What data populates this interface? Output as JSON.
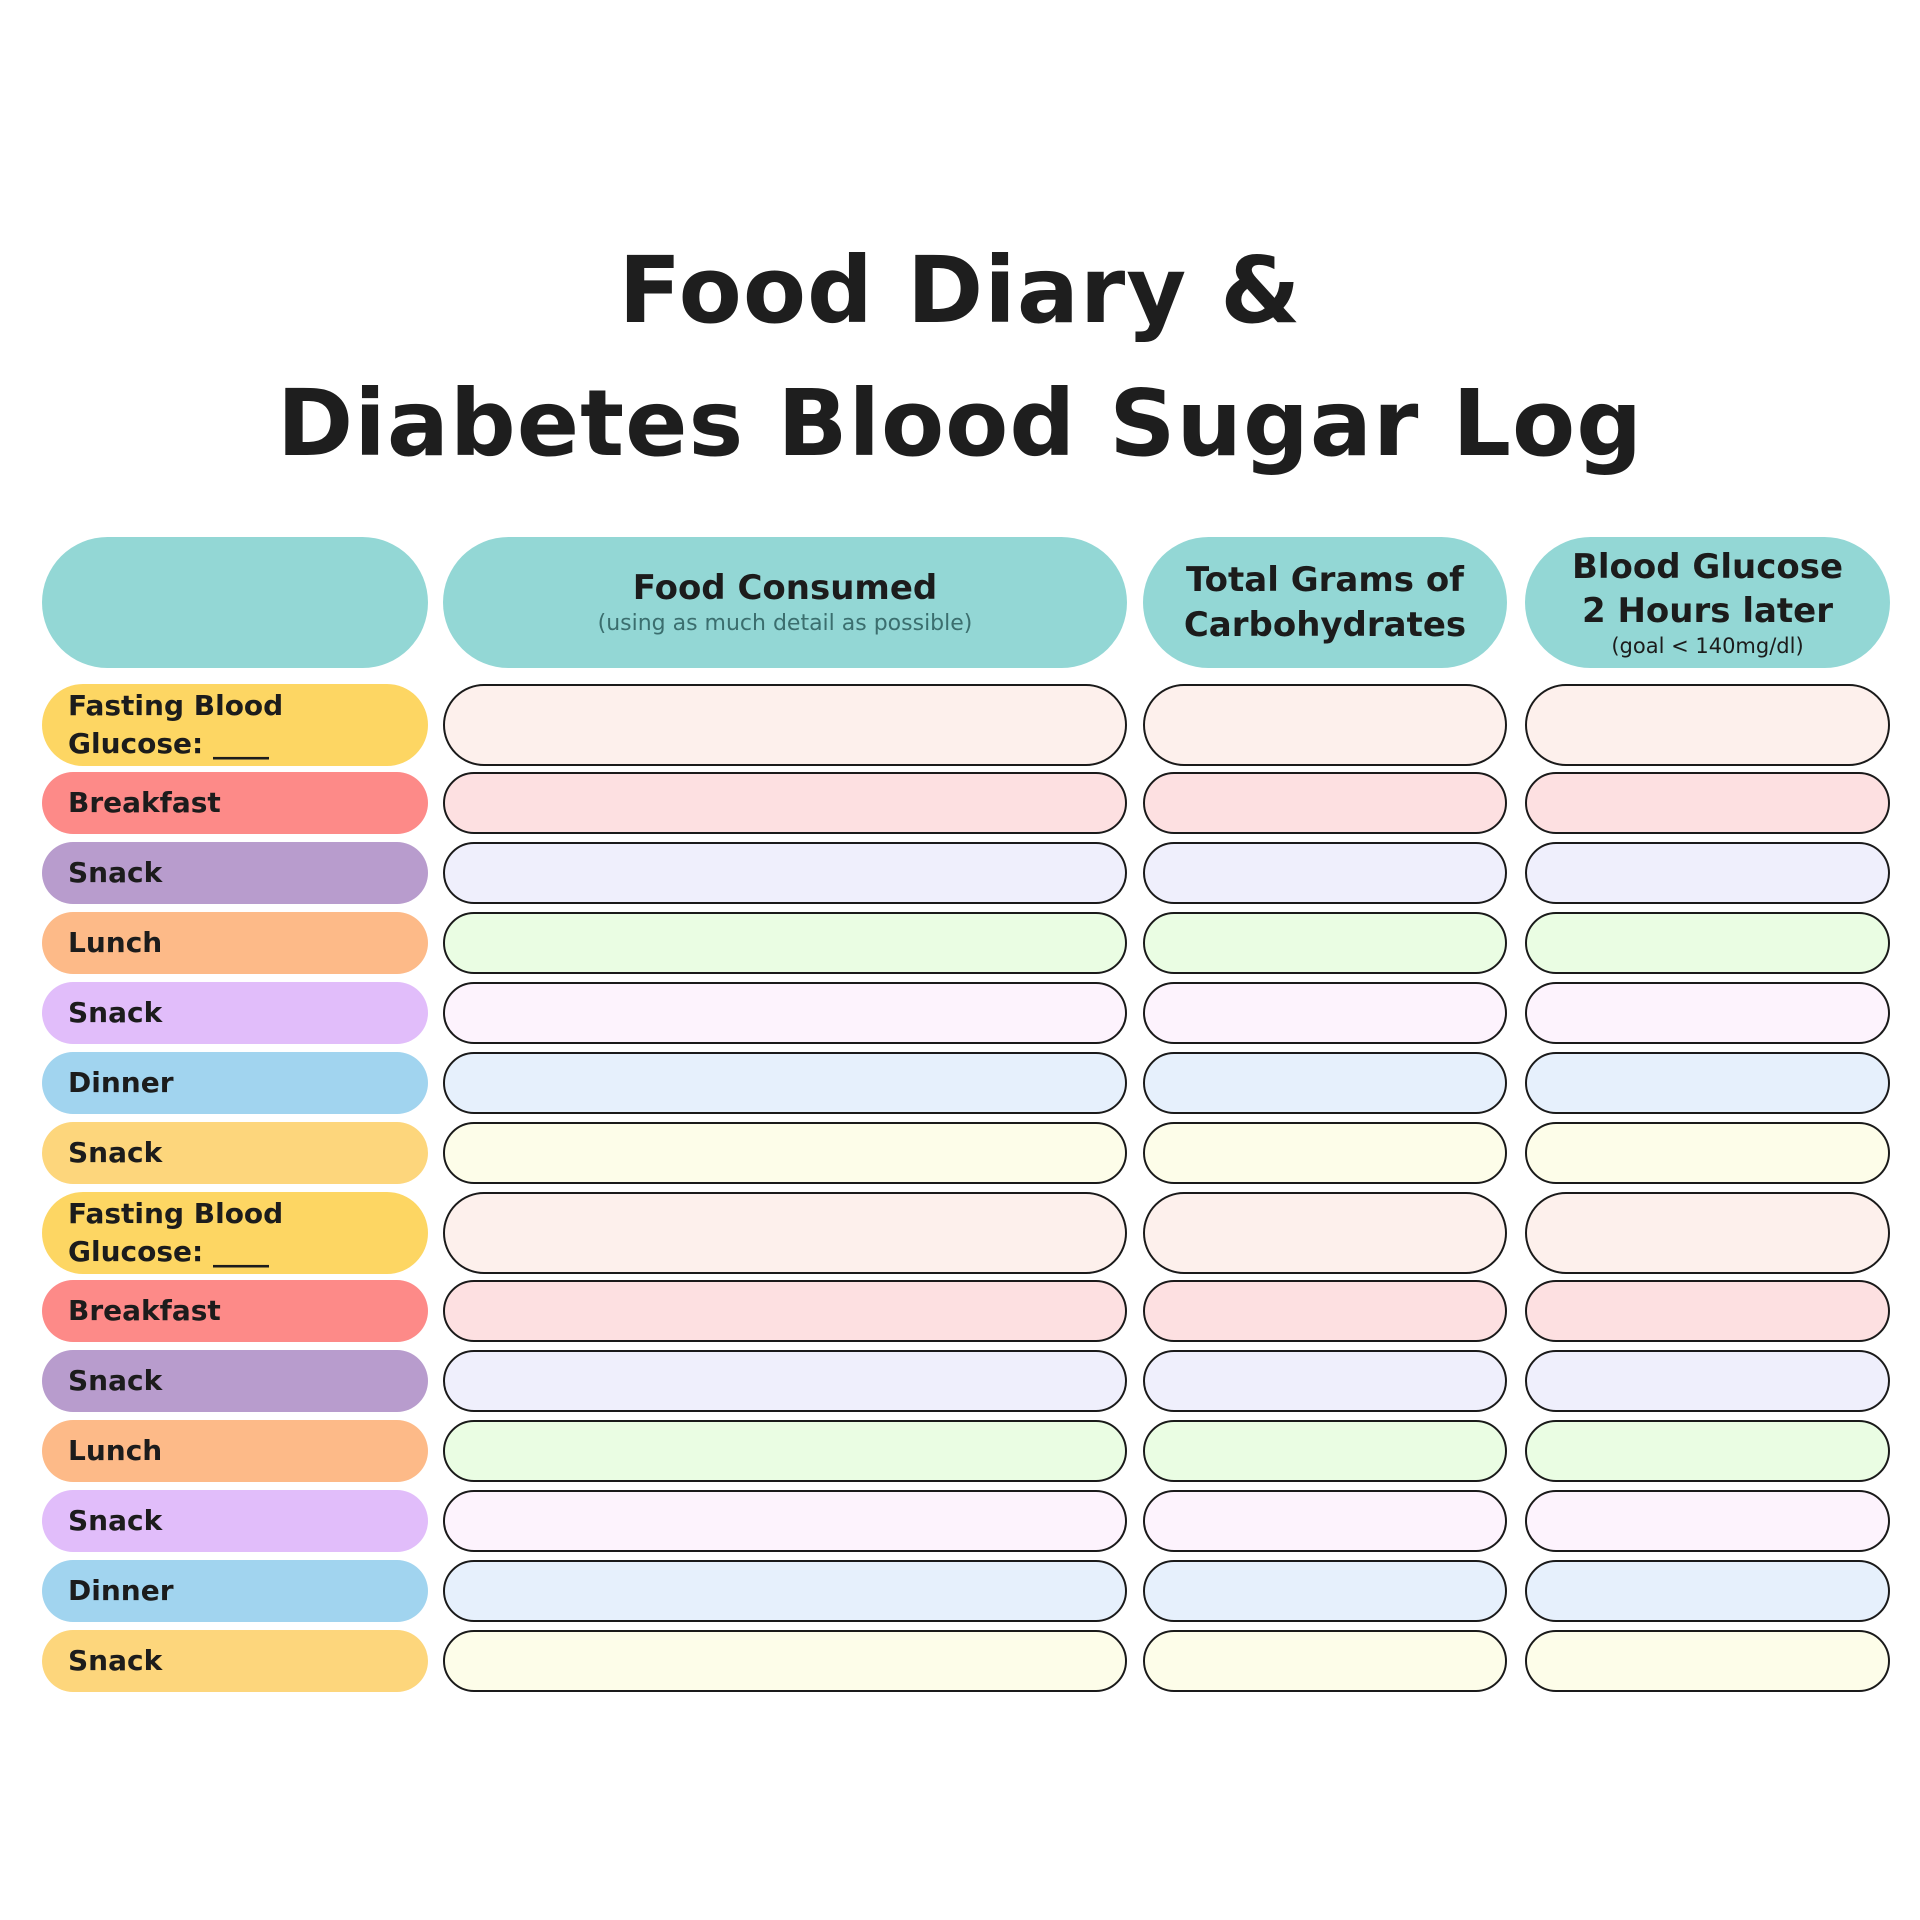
{
  "title": {
    "line1": "Food Diary &",
    "line2": "Diabetes Blood Sugar Log"
  },
  "columns": {
    "food_label": "Food Consumed",
    "food_sub": "(using as much detail as possible)",
    "carbs_label": "Total Grams of\nCarbohydrates",
    "glucose_label": "Blood Glucose\n2 Hours later",
    "glucose_sub": "(goal < 140mg/dl)"
  },
  "colors": {
    "header": "#93d7d5",
    "border": "#1a1a1a"
  },
  "rows": [
    {
      "label": "Fasting Blood\nGlucose: ____",
      "label_color": "#fdd663",
      "cell_color": "#fdf0ec"
    },
    {
      "label": "Breakfast",
      "label_color": "#fd8a88",
      "cell_color": "#fde0e1"
    },
    {
      "label": "Snack",
      "label_color": "#b89ccd",
      "cell_color": "#efeffc"
    },
    {
      "label": "Lunch",
      "label_color": "#fdba88",
      "cell_color": "#eafde3"
    },
    {
      "label": "Snack",
      "label_color": "#e1bdfa",
      "cell_color": "#fdf3fd"
    },
    {
      "label": "Dinner",
      "label_color": "#a1d4ef",
      "cell_color": "#e6f0fc"
    },
    {
      "label": "Snack",
      "label_color": "#fdd67c",
      "cell_color": "#fdfde9"
    },
    {
      "label": "Fasting Blood\nGlucose: ____",
      "label_color": "#fdd663",
      "cell_color": "#fdf0ec"
    },
    {
      "label": "Breakfast",
      "label_color": "#fd8a88",
      "cell_color": "#fde0e1"
    },
    {
      "label": "Snack",
      "label_color": "#b89ccd",
      "cell_color": "#efeffc"
    },
    {
      "label": "Lunch",
      "label_color": "#fdba88",
      "cell_color": "#eafde3"
    },
    {
      "label": "Snack",
      "label_color": "#e1bdfa",
      "cell_color": "#fdf3fd"
    },
    {
      "label": "Dinner",
      "label_color": "#a1d4ef",
      "cell_color": "#e6f0fc"
    },
    {
      "label": "Snack",
      "label_color": "#fdd67c",
      "cell_color": "#fdfde9"
    }
  ]
}
